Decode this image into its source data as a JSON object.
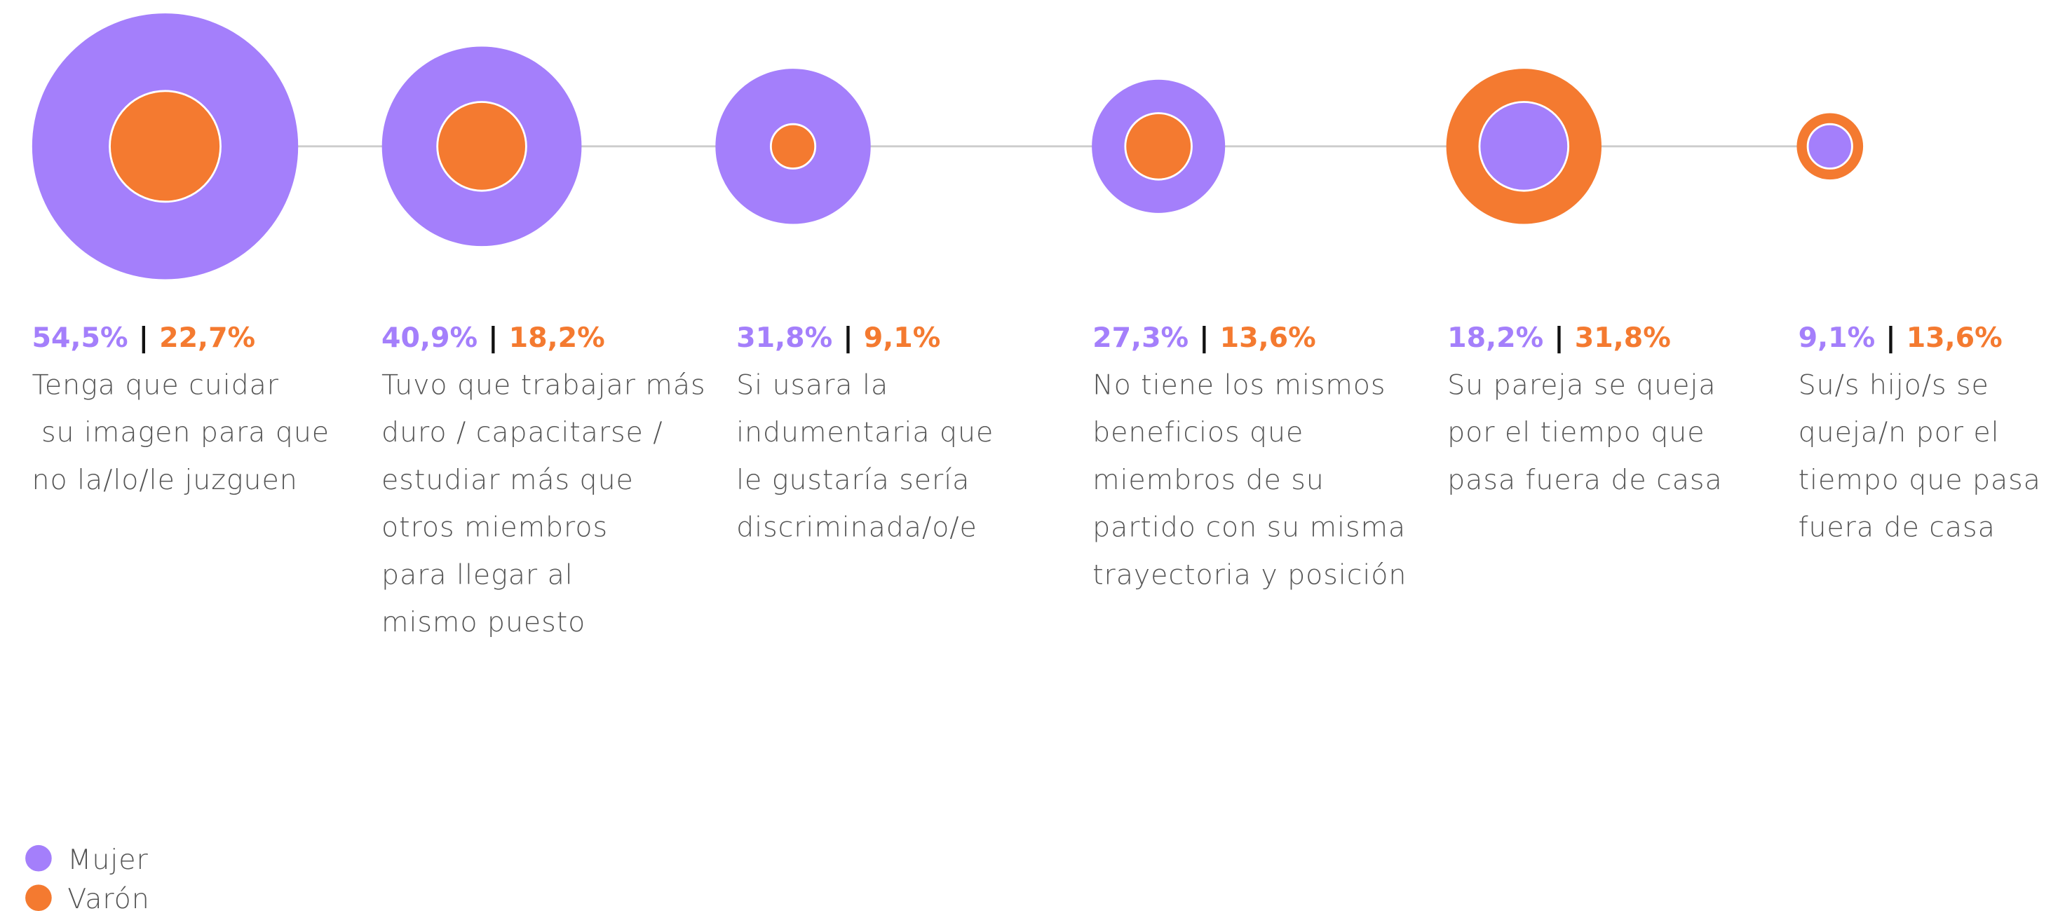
{
  "chart_data": {
    "type": "bubble",
    "categories": [
      [
        "Tenga que cuidar",
        " su imagen para que",
        "no la/lo/le juzguen"
      ],
      [
        "Tuvo que trabajar más",
        "duro / capacitarse /",
        "estudiar más que",
        "otros miembros",
        "para llegar al",
        "mismo puesto"
      ],
      [
        "Si usara la",
        "indumentaria que",
        "le gustaría sería",
        "discriminada/o/e"
      ],
      [
        "No tiene los mismos",
        "beneficios que",
        "miembros de su",
        "partido con su misma",
        "trayectoria y posición"
      ],
      [
        "Su pareja se queja",
        "por el tiempo que",
        "pasa fuera de casa"
      ],
      [
        "Su/s hijo/s se",
        "queja/n por el",
        "tiempo que pasa",
        "fuera de casa"
      ]
    ],
    "separator": "|",
    "series": [
      {
        "name": "Mujer",
        "color": "#a47ffb",
        "values": [
          54.5,
          40.9,
          31.8,
          27.3,
          18.2,
          9.1
        ],
        "value_labels": [
          "54,5%",
          "40,9%",
          "31,8%",
          "27,3%",
          "18,2%",
          "9,1%"
        ]
      },
      {
        "name": "Varón",
        "color": "#f47a30",
        "values": [
          22.7,
          18.2,
          9.1,
          13.6,
          31.8,
          13.6
        ],
        "value_labels": [
          "22,7%",
          "18,2%",
          "9,1%",
          "13,6%",
          "31,8%",
          "13,6%"
        ]
      }
    ]
  }
}
